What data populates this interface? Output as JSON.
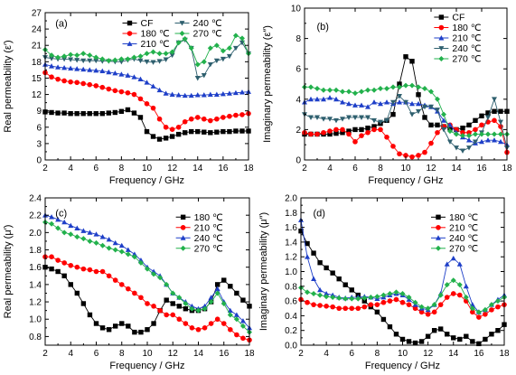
{
  "chart_data": [
    {
      "type": "line",
      "panel_label": "(a)",
      "xlabel": "Frequency / GHz",
      "ylabel": "Real permeability (ε′)",
      "xlim": [
        2,
        18
      ],
      "ylim": [
        0,
        27
      ],
      "xticks": [
        2,
        4,
        6,
        8,
        10,
        12,
        14,
        16,
        18
      ],
      "yticks": [
        0,
        3,
        6,
        9,
        12,
        15,
        18,
        21,
        24,
        27
      ],
      "legend_placement": "top",
      "x": [
        2,
        2.5,
        3,
        3.5,
        4,
        4.5,
        5,
        5.5,
        6,
        6.5,
        7,
        7.5,
        8,
        8.5,
        9,
        9.5,
        10,
        10.5,
        11,
        11.5,
        12,
        12.5,
        13,
        13.5,
        14,
        14.5,
        15,
        15.5,
        16,
        16.5,
        17,
        17.5,
        18
      ],
      "series": [
        {
          "name": "CF",
          "color": "#000000",
          "marker": "square",
          "values": [
            8.8,
            8.7,
            8.6,
            8.6,
            8.5,
            8.5,
            8.5,
            8.5,
            8.5,
            8.5,
            8.6,
            8.7,
            8.9,
            9.2,
            8.6,
            7.8,
            5.2,
            4.3,
            3.8,
            4.0,
            4.3,
            4.7,
            5.0,
            5.2,
            5.2,
            5.1,
            5.0,
            5.1,
            5.2,
            5.2,
            5.3,
            5.3,
            5.3
          ]
        },
        {
          "name": "180 ℃",
          "color": "#ff0000",
          "marker": "circle",
          "values": [
            16.0,
            15.2,
            14.8,
            14.5,
            14.3,
            14.2,
            14.0,
            13.8,
            13.6,
            13.3,
            13.0,
            12.7,
            12.5,
            12.3,
            12.0,
            11.2,
            10.3,
            9.5,
            7.5,
            6.0,
            5.6,
            6.0,
            7.0,
            7.5,
            7.8,
            7.5,
            7.2,
            7.5,
            7.8,
            8.0,
            8.2,
            8.3,
            8.5
          ]
        },
        {
          "name": "210 ℃",
          "color": "#1e3fc8",
          "marker": "triangle-up",
          "values": [
            17.5,
            17.2,
            17.0,
            16.9,
            16.8,
            16.7,
            16.6,
            16.5,
            16.4,
            16.3,
            16.1,
            15.9,
            15.7,
            15.5,
            15.2,
            14.8,
            14.2,
            13.5,
            12.8,
            12.2,
            12.0,
            11.9,
            11.8,
            11.8,
            11.9,
            11.9,
            12.0,
            12.0,
            12.1,
            12.2,
            12.3,
            12.4,
            12.5
          ]
        },
        {
          "name": "240 ℃",
          "color": "#2e5f6e",
          "marker": "triangle-down",
          "values": [
            18.8,
            18.6,
            18.5,
            18.5,
            18.4,
            18.3,
            18.2,
            18.2,
            18.2,
            18.1,
            18.1,
            18.0,
            18.0,
            18.3,
            18.5,
            18.2,
            18.0,
            17.9,
            18.1,
            18.4,
            19.2,
            21.5,
            22.0,
            20.5,
            15.0,
            15.5,
            17.5,
            18.2,
            18.5,
            19.0,
            20.5,
            21.5,
            19.5
          ]
        },
        {
          "name": "270 ℃",
          "color": "#22b14c",
          "marker": "diamond",
          "values": [
            20.2,
            19.2,
            18.8,
            19.0,
            19.3,
            19.2,
            19.5,
            19.2,
            18.8,
            18.5,
            18.2,
            18.3,
            18.5,
            18.5,
            18.8,
            19.0,
            19.5,
            19.8,
            19.5,
            19.5,
            19.8,
            21.5,
            22.2,
            20.5,
            17.5,
            18.0,
            20.5,
            21.0,
            20.0,
            20.5,
            22.8,
            22.3,
            19.5
          ]
        }
      ]
    },
    {
      "type": "line",
      "panel_label": "(b)",
      "xlabel": "Frequency / GHz",
      "ylabel": "Imaginary permeability (ε″)",
      "xlim": [
        2,
        18
      ],
      "ylim": [
        0,
        10
      ],
      "xticks": [
        2,
        4,
        6,
        8,
        10,
        12,
        14,
        16,
        18
      ],
      "yticks": [
        0,
        2,
        4,
        6,
        8,
        10
      ],
      "legend_placement": "top-right",
      "x": [
        2,
        2.5,
        3,
        3.5,
        4,
        4.5,
        5,
        5.5,
        6,
        6.5,
        7,
        7.5,
        8,
        8.5,
        9,
        9.5,
        10,
        10.5,
        11,
        11.5,
        12,
        12.5,
        13,
        13.5,
        14,
        14.5,
        15,
        15.5,
        16,
        16.5,
        17,
        17.5,
        18
      ],
      "series": [
        {
          "name": "CF",
          "color": "#000000",
          "marker": "square",
          "values": [
            1.7,
            1.7,
            1.7,
            1.7,
            1.7,
            1.75,
            1.8,
            1.9,
            2.0,
            2.0,
            2.1,
            2.2,
            2.4,
            2.6,
            3.0,
            5.0,
            6.8,
            6.5,
            4.3,
            2.8,
            2.3,
            2.3,
            2.2,
            2.1,
            2.0,
            2.1,
            2.3,
            2.6,
            2.9,
            3.1,
            3.2,
            3.2,
            3.2
          ]
        },
        {
          "name": "180 ℃",
          "color": "#ff0000",
          "marker": "circle",
          "values": [
            1.8,
            1.7,
            1.7,
            1.8,
            1.9,
            2.0,
            2.0,
            1.7,
            1.2,
            1.6,
            1.8,
            2.0,
            2.0,
            1.5,
            0.9,
            0.4,
            0.3,
            0.2,
            0.3,
            0.5,
            1.1,
            1.8,
            2.2,
            2.3,
            2.0,
            1.8,
            1.8,
            2.0,
            2.3,
            2.5,
            2.6,
            2.2,
            0.5
          ]
        },
        {
          "name": "210 ℃",
          "color": "#1e3fc8",
          "marker": "triangle-up",
          "values": [
            3.8,
            4.0,
            4.0,
            4.0,
            4.1,
            4.0,
            3.8,
            3.7,
            3.6,
            3.6,
            3.5,
            3.8,
            3.7,
            3.8,
            3.7,
            3.8,
            3.8,
            3.7,
            3.7,
            3.6,
            3.5,
            3.2,
            2.6,
            2.3,
            1.8,
            1.5,
            1.3,
            1.1,
            1.2,
            1.3,
            1.3,
            1.2,
            1.0
          ]
        },
        {
          "name": "240 ℃",
          "color": "#2e5f6e",
          "marker": "triangle-down",
          "values": [
            3.0,
            2.8,
            2.8,
            2.7,
            2.7,
            2.6,
            2.7,
            2.8,
            2.8,
            2.8,
            2.8,
            2.6,
            2.5,
            2.6,
            3.8,
            4.2,
            3.8,
            3.0,
            3.2,
            3.5,
            3.5,
            3.3,
            2.0,
            1.2,
            0.8,
            0.6,
            0.8,
            1.2,
            1.8,
            2.8,
            4.0,
            2.5,
            0.8
          ]
        },
        {
          "name": "270 ℃",
          "color": "#22b14c",
          "marker": "diamond",
          "values": [
            4.8,
            4.8,
            4.7,
            4.6,
            4.6,
            4.6,
            4.5,
            4.5,
            4.4,
            4.5,
            4.6,
            4.6,
            4.7,
            4.7,
            4.8,
            4.8,
            4.9,
            4.9,
            4.8,
            4.7,
            4.5,
            4.0,
            3.0,
            1.9,
            1.7,
            1.6,
            1.6,
            1.7,
            1.7,
            1.7,
            1.7,
            1.7,
            1.7
          ]
        }
      ]
    },
    {
      "type": "line",
      "panel_label": "(c)",
      "xlabel": "Frequency / GHz",
      "ylabel": "Real permeability (μ′)",
      "xlim": [
        2,
        18
      ],
      "ylim": [
        0.7,
        2.4
      ],
      "xticks": [
        2,
        4,
        6,
        8,
        10,
        12,
        14,
        16,
        18
      ],
      "yticks": [
        0.8,
        1.0,
        1.2,
        1.4,
        1.6,
        1.8,
        2.0,
        2.2,
        2.4
      ],
      "legend_placement": "top-right",
      "x": [
        2,
        2.5,
        3,
        3.5,
        4,
        4.5,
        5,
        5.5,
        6,
        6.5,
        7,
        7.5,
        8,
        8.5,
        9,
        9.5,
        10,
        10.5,
        11,
        11.5,
        12,
        12.5,
        13,
        13.5,
        14,
        14.5,
        15,
        15.5,
        16,
        16.5,
        17,
        17.5,
        18
      ],
      "series": [
        {
          "name": "180 ℃",
          "color": "#000000",
          "marker": "square",
          "values": [
            1.6,
            1.58,
            1.55,
            1.5,
            1.4,
            1.3,
            1.18,
            1.05,
            0.95,
            0.9,
            0.88,
            0.92,
            0.95,
            0.92,
            0.85,
            0.85,
            0.88,
            0.95,
            1.1,
            1.22,
            1.18,
            1.15,
            1.12,
            1.1,
            1.1,
            1.12,
            1.2,
            1.4,
            1.45,
            1.38,
            1.3,
            1.22,
            1.15
          ]
        },
        {
          "name": "210 ℃",
          "color": "#ff0000",
          "marker": "circle",
          "values": [
            1.72,
            1.72,
            1.68,
            1.65,
            1.62,
            1.6,
            1.58,
            1.57,
            1.55,
            1.55,
            1.5,
            1.45,
            1.4,
            1.35,
            1.3,
            1.25,
            1.18,
            1.15,
            1.1,
            1.05,
            1.05,
            1.0,
            0.95,
            0.9,
            0.88,
            0.9,
            0.95,
            1.0,
            0.95,
            0.88,
            0.82,
            0.78,
            0.76
          ]
        },
        {
          "name": "240 ℃",
          "color": "#1e3fc8",
          "marker": "triangle-up",
          "values": [
            2.2,
            2.18,
            2.15,
            2.12,
            2.08,
            2.05,
            2.02,
            2.0,
            1.98,
            1.95,
            1.92,
            1.88,
            1.85,
            1.8,
            1.75,
            1.68,
            1.6,
            1.55,
            1.5,
            1.4,
            1.3,
            1.25,
            1.2,
            1.15,
            1.12,
            1.15,
            1.25,
            1.35,
            1.2,
            1.1,
            1.05,
            0.98,
            0.9
          ]
        },
        {
          "name": "270 ℃",
          "color": "#22b14c",
          "marker": "diamond",
          "values": [
            2.12,
            2.1,
            2.05,
            2.0,
            1.98,
            1.95,
            1.93,
            1.9,
            1.88,
            1.85,
            1.82,
            1.8,
            1.78,
            1.75,
            1.72,
            1.65,
            1.58,
            1.52,
            1.48,
            1.4,
            1.3,
            1.25,
            1.18,
            1.12,
            1.1,
            1.12,
            1.2,
            1.3,
            1.18,
            1.05,
            1.0,
            0.92,
            0.85
          ]
        }
      ]
    },
    {
      "type": "line",
      "panel_label": "(d)",
      "xlabel": "Frequency / GHz",
      "ylabel": "Imaginary permeability (μ″)",
      "xlim": [
        2,
        18
      ],
      "ylim": [
        0,
        2.0
      ],
      "xticks": [
        2,
        4,
        6,
        8,
        10,
        12,
        14,
        16,
        18
      ],
      "yticks": [
        0.0,
        0.2,
        0.4,
        0.6,
        0.8,
        1.0,
        1.2,
        1.4,
        1.6,
        1.8,
        2.0
      ],
      "legend_placement": "top-right",
      "x": [
        2,
        2.5,
        3,
        3.5,
        4,
        4.5,
        5,
        5.5,
        6,
        6.5,
        7,
        7.5,
        8,
        8.5,
        9,
        9.5,
        10,
        10.5,
        11,
        11.5,
        12,
        12.5,
        13,
        13.5,
        14,
        14.5,
        15,
        15.5,
        16,
        16.5,
        17,
        17.5,
        18
      ],
      "series": [
        {
          "name": "180 ℃",
          "color": "#000000",
          "marker": "square",
          "values": [
            1.55,
            1.38,
            1.25,
            1.12,
            1.05,
            0.98,
            0.9,
            0.82,
            0.75,
            0.68,
            0.6,
            0.52,
            0.45,
            0.35,
            0.25,
            0.15,
            0.08,
            0.05,
            0.03,
            0.05,
            0.12,
            0.2,
            0.22,
            0.15,
            0.1,
            0.08,
            0.12,
            0.05,
            0.02,
            0.08,
            0.15,
            0.2,
            0.28
          ]
        },
        {
          "name": "210 ℃",
          "color": "#ff0000",
          "marker": "circle",
          "values": [
            0.62,
            0.58,
            0.55,
            0.54,
            0.53,
            0.52,
            0.5,
            0.5,
            0.5,
            0.5,
            0.52,
            0.55,
            0.55,
            0.58,
            0.6,
            0.62,
            0.58,
            0.55,
            0.5,
            0.45,
            0.42,
            0.45,
            0.55,
            0.65,
            0.7,
            0.68,
            0.6,
            0.45,
            0.38,
            0.42,
            0.48,
            0.52,
            0.55
          ]
        },
        {
          "name": "240 ℃",
          "color": "#1e3fc8",
          "marker": "triangle-up",
          "values": [
            1.7,
            1.2,
            0.9,
            0.75,
            0.7,
            0.68,
            0.65,
            0.64,
            0.65,
            0.65,
            0.66,
            0.65,
            0.63,
            0.65,
            0.68,
            0.7,
            0.68,
            0.62,
            0.55,
            0.5,
            0.48,
            0.55,
            0.7,
            1.1,
            1.18,
            1.1,
            0.8,
            0.55,
            0.45,
            0.48,
            0.55,
            0.62,
            0.68
          ]
        },
        {
          "name": "270 ℃",
          "color": "#22b14c",
          "marker": "diamond",
          "values": [
            0.78,
            0.72,
            0.7,
            0.68,
            0.66,
            0.65,
            0.64,
            0.63,
            0.63,
            0.63,
            0.64,
            0.65,
            0.66,
            0.68,
            0.7,
            0.72,
            0.7,
            0.65,
            0.58,
            0.52,
            0.5,
            0.55,
            0.68,
            0.82,
            0.88,
            0.82,
            0.65,
            0.5,
            0.45,
            0.48,
            0.55,
            0.6,
            0.65
          ]
        }
      ]
    }
  ]
}
